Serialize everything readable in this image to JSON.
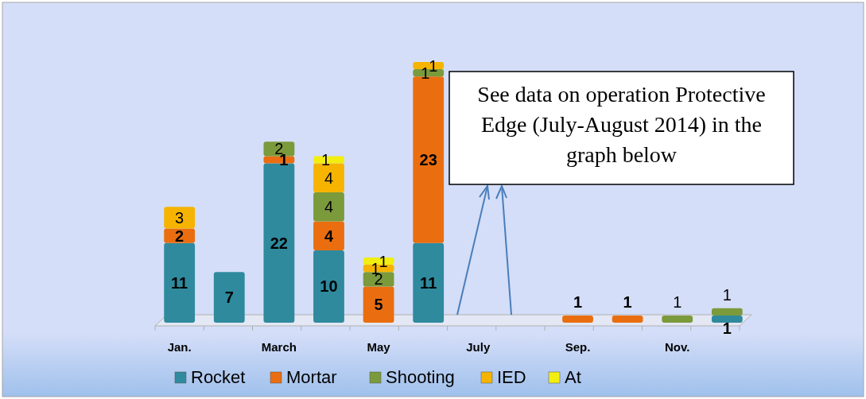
{
  "chart_data": {
    "type": "bar",
    "stacked": true,
    "data_labels": true,
    "legend": "bottom",
    "categories": [
      "Jan.",
      null,
      "March",
      null,
      "May",
      null,
      "July",
      null,
      "Sep.",
      null,
      "Nov.",
      null
    ],
    "series": [
      {
        "name": "Rocket",
        "color": "#2f8a9e",
        "values": [
          11,
          7,
          22,
          10,
          null,
          11,
          null,
          null,
          null,
          null,
          null,
          1
        ]
      },
      {
        "name": "Mortar",
        "color": "#ea6e10",
        "values": [
          2,
          null,
          1,
          4,
          5,
          23,
          null,
          null,
          1,
          1,
          null,
          null
        ]
      },
      {
        "name": "Shooting",
        "color": "#7b9a3c",
        "values": [
          null,
          null,
          2,
          4,
          2,
          1,
          null,
          null,
          null,
          null,
          1,
          1
        ]
      },
      {
        "name": "IED",
        "color": "#f6b400",
        "values": [
          3,
          null,
          null,
          4,
          1,
          1,
          null,
          null,
          null,
          null,
          null,
          null
        ]
      },
      {
        "name": "At",
        "color": "#f2ee10",
        "values": [
          null,
          null,
          null,
          1,
          1,
          null,
          null,
          null,
          null,
          null,
          null,
          null
        ]
      }
    ],
    "annotations": [
      "See data on operation Protective Edge (July-August 2014) in the graph below"
    ]
  }
}
